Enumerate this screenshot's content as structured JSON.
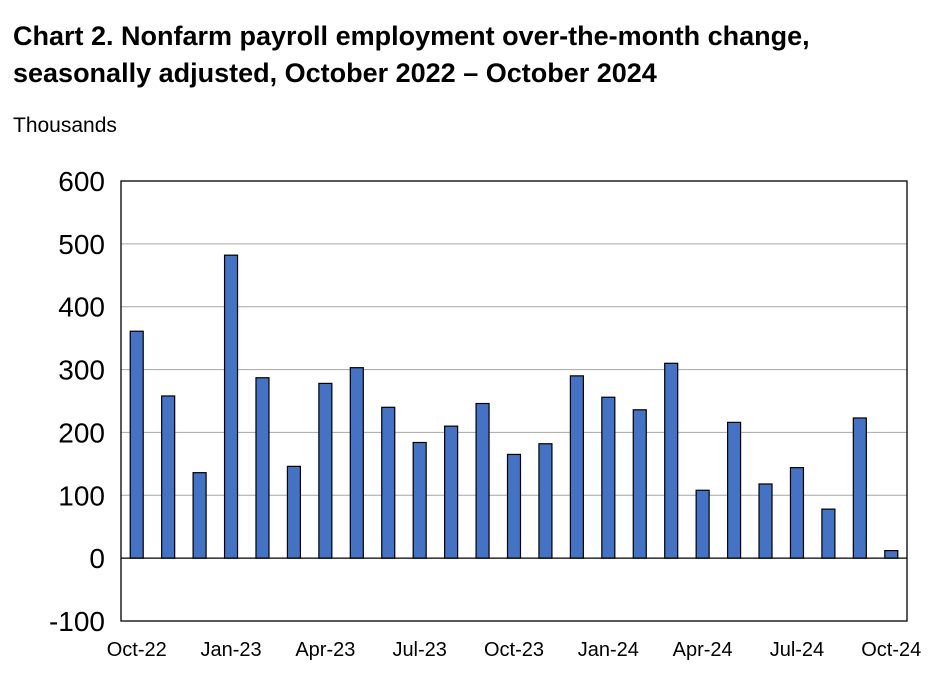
{
  "chart_data": {
    "type": "bar",
    "title": "Chart 2. Nonfarm payroll employment over-the-month change, seasonally adjusted, October 2022 – October 2024",
    "title_lines": [
      "Chart 2. Nonfarm payroll employment over-the-month change,",
      "seasonally adjusted, October 2022 – October 2024"
    ],
    "unit_label": "Thousands",
    "xlabel": "",
    "ylabel": "",
    "ylim": [
      -100,
      600
    ],
    "yticks": [
      -100,
      0,
      100,
      200,
      300,
      400,
      500,
      600
    ],
    "ytick_labels": [
      "-100",
      "0",
      "100",
      "200",
      "300",
      "400",
      "500",
      "600"
    ],
    "grid": true,
    "legend": "none",
    "categories": [
      "Oct-22",
      "Nov-22",
      "Dec-22",
      "Jan-23",
      "Feb-23",
      "Mar-23",
      "Apr-23",
      "May-23",
      "Jun-23",
      "Jul-23",
      "Aug-23",
      "Sep-23",
      "Oct-23",
      "Nov-23",
      "Dec-23",
      "Jan-24",
      "Feb-24",
      "Mar-24",
      "Apr-24",
      "May-24",
      "Jun-24",
      "Jul-24",
      "Aug-24",
      "Sep-24",
      "Oct-24"
    ],
    "xtick_labels": [
      "Oct-22",
      "Jan-23",
      "Apr-23",
      "Jul-23",
      "Oct-23",
      "Jan-24",
      "Apr-24",
      "Jul-24",
      "Oct-24"
    ],
    "xtick_indices": [
      0,
      3,
      6,
      9,
      12,
      15,
      18,
      21,
      24
    ],
    "values": [
      361,
      258,
      136,
      482,
      287,
      146,
      278,
      303,
      240,
      184,
      210,
      246,
      165,
      182,
      290,
      256,
      236,
      310,
      108,
      216,
      118,
      144,
      78,
      223,
      12
    ],
    "colors": {
      "bar_fill": "#4472C4",
      "bar_stroke": "#000000",
      "grid": "#a6a6a6",
      "axis": "#000000"
    }
  }
}
